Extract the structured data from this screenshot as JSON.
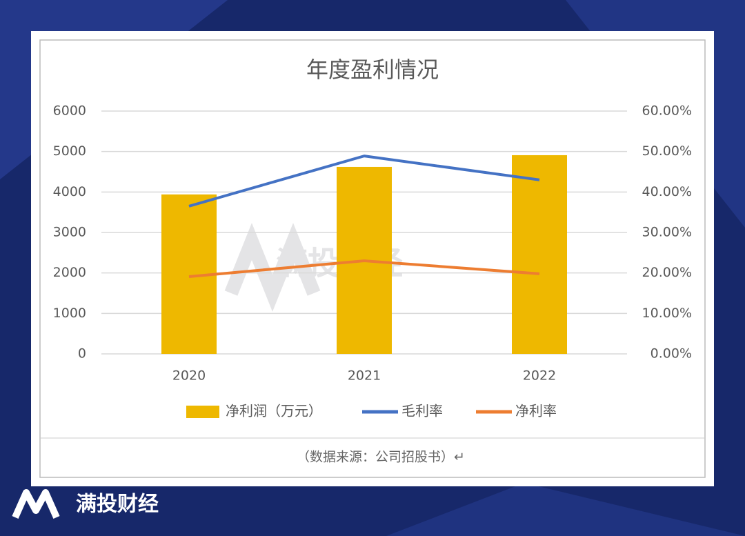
{
  "chart_data": {
    "type": "bar",
    "title": "年度盈利情况",
    "categories": [
      "2020",
      "2021",
      "2022"
    ],
    "series": [
      {
        "name": "净利润（万元）",
        "type": "bar",
        "color": "#eeb800",
        "values": [
          3940,
          4620,
          4910
        ]
      },
      {
        "name": "毛利率",
        "type": "line",
        "axis": "y2",
        "color": "#4472c4",
        "values": [
          36.5,
          48.9,
          43.0
        ]
      },
      {
        "name": "净利率",
        "type": "line",
        "axis": "y2",
        "color": "#ed7d31",
        "values": [
          19.1,
          23.0,
          19.8
        ]
      }
    ],
    "ylim": [
      0,
      6000
    ],
    "yticks": [
      0,
      1000,
      2000,
      3000,
      4000,
      5000,
      6000
    ],
    "y2lim": [
      0,
      60
    ],
    "y2ticks": [
      {
        "value": 0,
        "label": "0.00%"
      },
      {
        "value": 10,
        "label": "10.00%"
      },
      {
        "value": 20,
        "label": "20.00%"
      },
      {
        "value": 30,
        "label": "30.00%"
      },
      {
        "value": 40,
        "label": "40.00%"
      },
      {
        "value": 50,
        "label": "50.00%"
      },
      {
        "value": 60,
        "label": "60.00%"
      }
    ],
    "grid": true,
    "legend": "bottom"
  },
  "watermark": "满投财经",
  "source": "（数据来源：公司招股书）↵",
  "brand": "满投财经"
}
